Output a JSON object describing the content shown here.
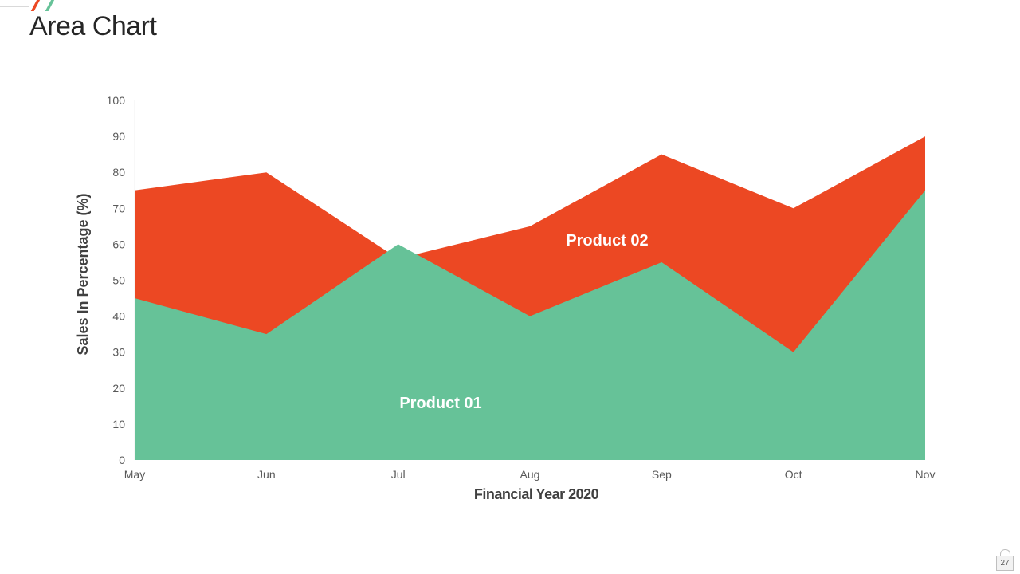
{
  "slide": {
    "title": "Area Chart",
    "page_number": "27"
  },
  "colors": {
    "product_01": "#66c298",
    "product_02": "#ec4823",
    "axis_text": "#595959",
    "axis_title": "#404040"
  },
  "icons": [
    "lock-icon"
  ],
  "chart_data": {
    "type": "area",
    "title": "",
    "xlabel": "Financial Year 2020",
    "ylabel": "Sales In Percentage (%)",
    "categories": [
      "May",
      "Jun",
      "Jul",
      "Aug",
      "Sep",
      "Oct",
      "Nov"
    ],
    "ylim": [
      0,
      100
    ],
    "yticks": [
      0,
      10,
      20,
      30,
      40,
      50,
      60,
      70,
      80,
      90,
      100
    ],
    "grid": false,
    "legend": "none",
    "series": [
      {
        "name": "Product 02",
        "values": [
          75,
          80,
          56,
          65,
          85,
          70,
          90
        ],
        "color": "#ec4823"
      },
      {
        "name": "Product 01",
        "values": [
          45,
          35,
          60,
          40,
          55,
          30,
          75
        ],
        "color": "#66c298"
      }
    ]
  }
}
